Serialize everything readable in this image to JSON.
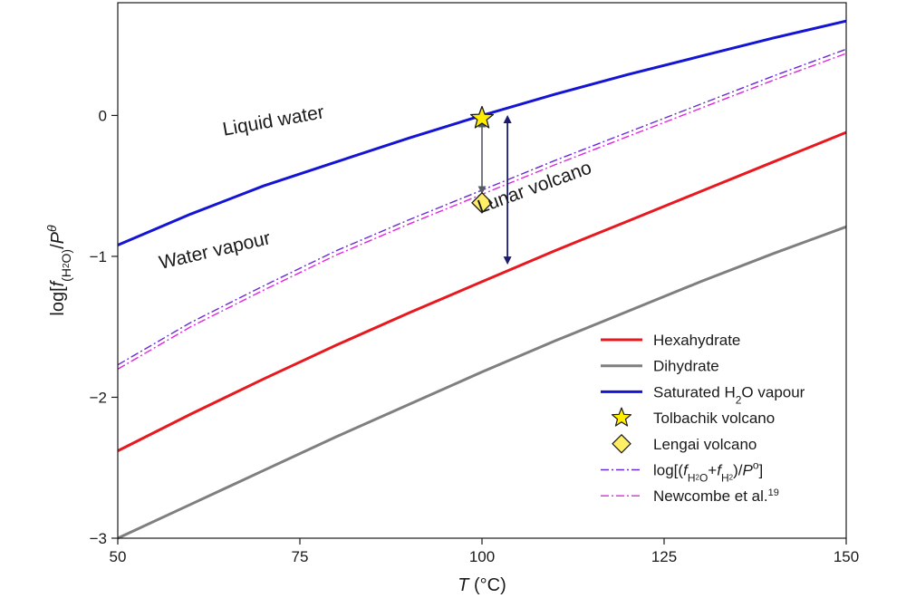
{
  "chart_data": {
    "type": "line",
    "xlabel": "T (°C)",
    "ylabel": "log[f(H2O)/Pθ]",
    "xlim": [
      50,
      150
    ],
    "ylim": [
      -3,
      0.8
    ],
    "x_ticks": [
      "50",
      "75",
      "100",
      "125",
      "150"
    ],
    "y_ticks": [
      "0",
      "−1",
      "−2",
      "−3"
    ],
    "grid": false,
    "legend_position": "bottom-right",
    "series": [
      {
        "name": "Hexahydrate",
        "color": "#e8191e",
        "style": "solid",
        "x": [
          50,
          60,
          70,
          80,
          90,
          100,
          110,
          120,
          130,
          140,
          150
        ],
        "y": [
          -2.38,
          -2.12,
          -1.87,
          -1.63,
          -1.4,
          -1.18,
          -0.96,
          -0.75,
          -0.54,
          -0.33,
          -0.12
        ]
      },
      {
        "name": "Dihydrate",
        "color": "#7f7f7f",
        "style": "solid",
        "x": [
          50,
          60,
          70,
          80,
          90,
          100,
          110,
          120,
          130,
          140,
          150
        ],
        "y": [
          -3.0,
          -2.76,
          -2.52,
          -2.28,
          -2.05,
          -1.82,
          -1.6,
          -1.39,
          -1.18,
          -0.98,
          -0.79
        ]
      },
      {
        "name": "Saturated H2O vapour",
        "color": "#1414d4",
        "style": "solid",
        "x": [
          50,
          60,
          70,
          80,
          90,
          100,
          110,
          120,
          130,
          140,
          150
        ],
        "y": [
          -0.92,
          -0.7,
          -0.5,
          -0.33,
          -0.16,
          0.0,
          0.15,
          0.29,
          0.42,
          0.55,
          0.67
        ]
      },
      {
        "name": "log[(fH2O+fH2)/P°]",
        "color": "#6a2bd6",
        "style": "dashdot",
        "x": [
          50,
          60,
          70,
          80,
          90,
          100,
          110,
          120,
          130,
          140,
          150
        ],
        "y": [
          -1.77,
          -1.47,
          -1.21,
          -0.96,
          -0.74,
          -0.53,
          -0.32,
          -0.12,
          0.08,
          0.28,
          0.47
        ]
      },
      {
        "name": "Newcombe et al.19",
        "color": "#e024e0",
        "style": "dashdot",
        "x": [
          50,
          60,
          70,
          80,
          90,
          100,
          110,
          120,
          130,
          140,
          150
        ],
        "y": [
          -1.8,
          -1.5,
          -1.24,
          -0.99,
          -0.77,
          -0.56,
          -0.35,
          -0.15,
          0.05,
          0.25,
          0.44
        ]
      }
    ],
    "points": [
      {
        "name": "Tolbachik volcano",
        "marker": "star",
        "x": 100,
        "y": -0.02,
        "color": "#ffee00"
      },
      {
        "name": "Lengai volcano",
        "marker": "diamond",
        "x": 100,
        "y": -0.62,
        "color": "#ffee66"
      }
    ],
    "arrows": [
      {
        "kind": "gray",
        "x": 100,
        "y1": 0.0,
        "y2": -0.56,
        "color": "#555b66"
      },
      {
        "kind": "navy",
        "x": 103.5,
        "y1": 0.03,
        "y2": -1.06,
        "color": "#1c1c6e"
      }
    ],
    "annotations": {
      "liquid": {
        "text": "Liquid water",
        "x": 71.5,
        "y": -0.08,
        "angle": -10
      },
      "vapour": {
        "text": "Water vapour",
        "x": 63.5,
        "y": -1.0,
        "angle": -13
      },
      "lunar": {
        "text": "Lunar volcano",
        "x": 107.5,
        "y": -0.55,
        "angle": -20
      }
    },
    "legend": [
      {
        "label": "Hexahydrate",
        "symbol": "solid",
        "color": "#e8191e"
      },
      {
        "label": "Dihydrate",
        "symbol": "solid",
        "color": "#7f7f7f"
      },
      {
        "label": "Saturated H2O vapour",
        "symbol": "solid",
        "color": "#1414d4"
      },
      {
        "label": "Tolbachik volcano",
        "symbol": "star",
        "color": "#ffee00"
      },
      {
        "label": "Lengai volcano",
        "symbol": "diamond",
        "color": "#ffee66"
      },
      {
        "label": "log[(fH2O+fH2)/P°]",
        "symbol": "dashdot",
        "color": "#6a2bd6"
      },
      {
        "label": "Newcombe et al.19",
        "symbol": "dashdot",
        "color": "#e024e0"
      }
    ]
  }
}
